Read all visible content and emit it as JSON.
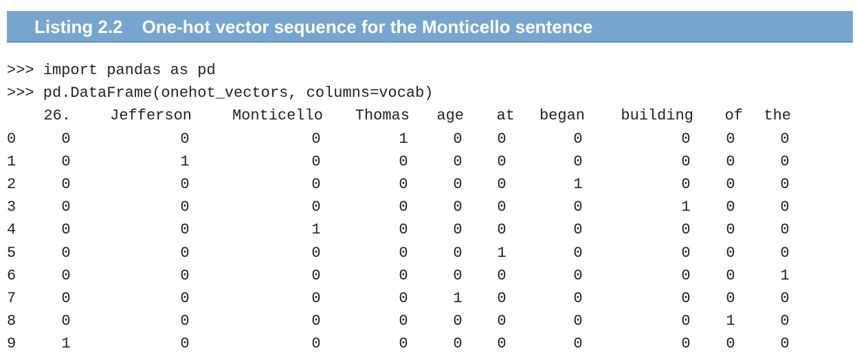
{
  "listing": {
    "number": "Listing 2.2",
    "title": "One-hot vector sequence for the Monticello sentence"
  },
  "code_lines": [
    ">>> import pandas as pd",
    ">>> pd.DataFrame(onehot_vectors, columns=vocab)"
  ],
  "table": {
    "columns": [
      "26.",
      "Jefferson",
      "Monticello",
      "Thomas",
      "age",
      "at",
      "began",
      "building",
      "of",
      "the"
    ],
    "rows": [
      {
        "index": "0",
        "values": [
          "0",
          "0",
          "0",
          "1",
          "0",
          "0",
          "0",
          "0",
          "0",
          "0"
        ]
      },
      {
        "index": "1",
        "values": [
          "0",
          "1",
          "0",
          "0",
          "0",
          "0",
          "0",
          "0",
          "0",
          "0"
        ]
      },
      {
        "index": "2",
        "values": [
          "0",
          "0",
          "0",
          "0",
          "0",
          "0",
          "1",
          "0",
          "0",
          "0"
        ]
      },
      {
        "index": "3",
        "values": [
          "0",
          "0",
          "0",
          "0",
          "0",
          "0",
          "0",
          "1",
          "0",
          "0"
        ]
      },
      {
        "index": "4",
        "values": [
          "0",
          "0",
          "1",
          "0",
          "0",
          "0",
          "0",
          "0",
          "0",
          "0"
        ]
      },
      {
        "index": "5",
        "values": [
          "0",
          "0",
          "0",
          "0",
          "0",
          "1",
          "0",
          "0",
          "0",
          "0"
        ]
      },
      {
        "index": "6",
        "values": [
          "0",
          "0",
          "0",
          "0",
          "0",
          "0",
          "0",
          "0",
          "0",
          "1"
        ]
      },
      {
        "index": "7",
        "values": [
          "0",
          "0",
          "0",
          "0",
          "1",
          "0",
          "0",
          "0",
          "0",
          "0"
        ]
      },
      {
        "index": "8",
        "values": [
          "0",
          "0",
          "0",
          "0",
          "0",
          "0",
          "0",
          "0",
          "1",
          "0"
        ]
      },
      {
        "index": "9",
        "values": [
          "1",
          "0",
          "0",
          "0",
          "0",
          "0",
          "0",
          "0",
          "0",
          "0"
        ]
      }
    ]
  },
  "colors": {
    "banner": "#76a6cf",
    "banner_text": "#ffffff",
    "code_text": "#222222"
  }
}
